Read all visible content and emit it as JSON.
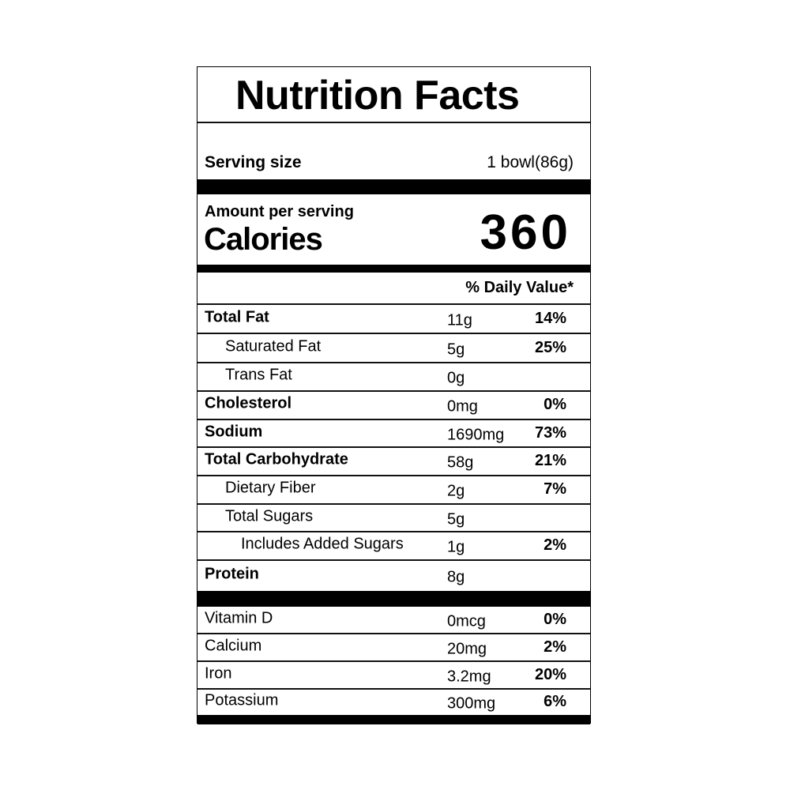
{
  "title": "Nutrition Facts",
  "serving": {
    "label": "Serving size",
    "value": "1 bowl(86g)"
  },
  "calories": {
    "amount_label": "Amount per serving",
    "label": "Calories",
    "value": "360"
  },
  "daily_value_header": "% Daily Value*",
  "nutrients": [
    {
      "name": "Total Fat",
      "amount": "11g",
      "dv": "14%",
      "bold": true,
      "indent": 0
    },
    {
      "name": "Saturated Fat",
      "amount": "5g",
      "dv": "25%",
      "bold": false,
      "indent": 1
    },
    {
      "name": "Trans Fat",
      "amount": "0g",
      "dv": "",
      "bold": false,
      "indent": 1
    },
    {
      "name": "Cholesterol",
      "amount": "0mg",
      "dv": "0%",
      "bold": true,
      "indent": 0
    },
    {
      "name": "Sodium",
      "amount": "1690mg",
      "dv": "73%",
      "bold": true,
      "indent": 0
    },
    {
      "name": "Total Carbohydrate",
      "amount": "58g",
      "dv": "21%",
      "bold": true,
      "indent": 0
    },
    {
      "name": "Dietary Fiber",
      "amount": "2g",
      "dv": "7%",
      "bold": false,
      "indent": 1
    },
    {
      "name": "Total Sugars",
      "amount": "5g",
      "dv": "",
      "bold": false,
      "indent": 1
    },
    {
      "name": "Includes Added Sugars",
      "amount": "1g",
      "dv": "2%",
      "bold": false,
      "indent": 2
    },
    {
      "name": "Protein",
      "amount": "8g",
      "dv": "",
      "bold": true,
      "indent": 0
    }
  ],
  "vitamins": [
    {
      "name": "Vitamin D",
      "amount": "0mcg",
      "dv": "0%"
    },
    {
      "name": "Calcium",
      "amount": "20mg",
      "dv": "2%"
    },
    {
      "name": "Iron",
      "amount": "3.2mg",
      "dv": "20%"
    },
    {
      "name": "Potassium",
      "amount": "300mg",
      "dv": "6%"
    }
  ]
}
